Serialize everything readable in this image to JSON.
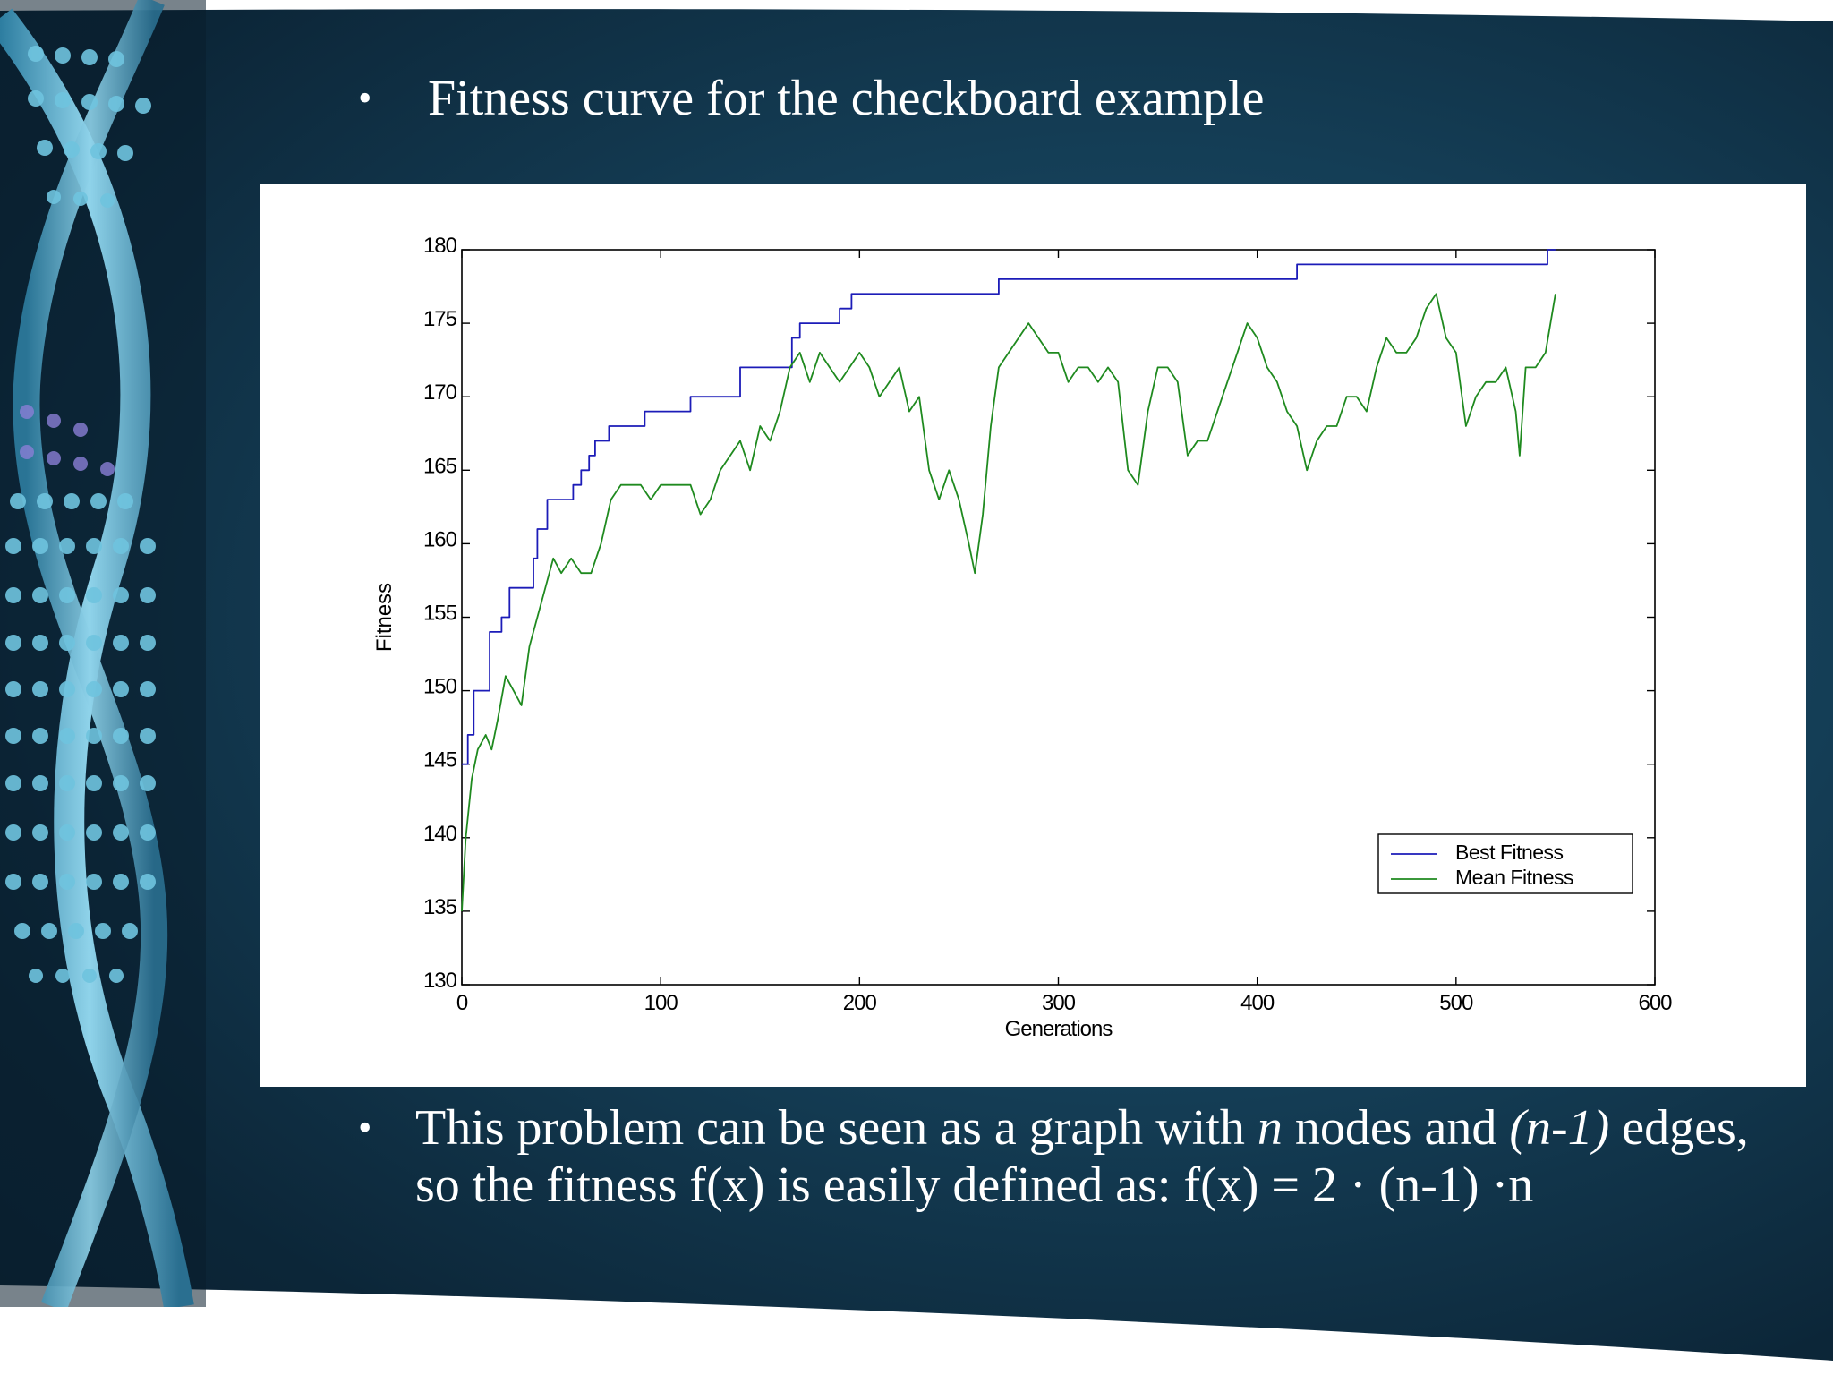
{
  "slide": {
    "bullet1": "Fitness curve for the checkboard example",
    "bullet2_line1_a": "This problem can be seen as a graph with ",
    "bullet2_line1_n": "n",
    "bullet2_line1_b": " nodes and ",
    "bullet2_line1_edges": "(n-1)",
    "bullet2_line1_c": " edges,",
    "bullet2_line2": "so the fitness f(x) is easily defined as: f(x) = 2 · (n-1) ·n",
    "bullet_symbol": "•"
  },
  "colors": {
    "best": "#1c1cb8",
    "mean": "#1f8a1f",
    "background": "#143d55"
  },
  "chart_data": {
    "type": "line",
    "title": "",
    "xlabel": "Generations",
    "ylabel": "Fitness",
    "xlim": [
      0,
      600
    ],
    "ylim": [
      130,
      180
    ],
    "xticks": [
      0,
      100,
      200,
      300,
      400,
      500,
      600
    ],
    "yticks": [
      130,
      135,
      140,
      145,
      150,
      155,
      160,
      165,
      170,
      175,
      180
    ],
    "grid": false,
    "legend": {
      "placement": "lower-right",
      "entries": [
        "Best Fitness",
        "Mean Fitness"
      ]
    },
    "series": [
      {
        "name": "Best Fitness",
        "color": "#1c1cb8",
        "step": true,
        "x": [
          0,
          3,
          6,
          14,
          16,
          20,
          24,
          28,
          36,
          38,
          40,
          43,
          56,
          60,
          64,
          67,
          74,
          85,
          92,
          115,
          125,
          140,
          166,
          170,
          190,
          196,
          206,
          270,
          305,
          420,
          425,
          540,
          546,
          550
        ],
        "y": [
          145,
          147,
          150,
          154,
          154,
          155,
          157,
          157,
          159,
          161,
          161,
          163,
          164,
          165,
          166,
          167,
          168,
          168,
          169,
          170,
          170,
          172,
          174,
          175,
          176,
          177,
          177,
          178,
          178,
          179,
          179,
          179,
          180,
          180
        ]
      },
      {
        "name": "Mean Fitness",
        "color": "#1f8a1f",
        "step": false,
        "x": [
          0,
          2,
          5,
          8,
          12,
          15,
          18,
          22,
          26,
          30,
          34,
          38,
          42,
          46,
          50,
          55,
          60,
          65,
          70,
          75,
          80,
          85,
          90,
          95,
          100,
          105,
          110,
          115,
          120,
          125,
          130,
          135,
          140,
          145,
          150,
          155,
          160,
          165,
          170,
          175,
          180,
          185,
          190,
          195,
          200,
          205,
          210,
          215,
          220,
          225,
          230,
          235,
          240,
          245,
          250,
          255,
          258,
          262,
          266,
          270,
          275,
          280,
          285,
          290,
          295,
          300,
          305,
          310,
          315,
          320,
          325,
          330,
          335,
          340,
          345,
          350,
          355,
          360,
          365,
          370,
          375,
          380,
          385,
          390,
          395,
          400,
          405,
          410,
          415,
          420,
          425,
          430,
          435,
          440,
          445,
          450,
          455,
          460,
          465,
          470,
          475,
          480,
          485,
          490,
          495,
          500,
          505,
          510,
          515,
          520,
          525,
          530,
          532,
          535,
          540,
          545,
          550
        ],
        "y": [
          135,
          140,
          144,
          146,
          147,
          146,
          148,
          151,
          150,
          149,
          153,
          155,
          157,
          159,
          158,
          159,
          158,
          158,
          160,
          163,
          164,
          164,
          164,
          163,
          164,
          164,
          164,
          164,
          162,
          163,
          165,
          166,
          167,
          165,
          168,
          167,
          169,
          172,
          173,
          171,
          173,
          172,
          171,
          172,
          173,
          172,
          170,
          171,
          172,
          169,
          170,
          165,
          163,
          165,
          163,
          160,
          158,
          162,
          168,
          172,
          173,
          174,
          175,
          174,
          173,
          173,
          171,
          172,
          172,
          171,
          172,
          171,
          165,
          164,
          169,
          172,
          172,
          171,
          166,
          167,
          167,
          169,
          171,
          173,
          175,
          174,
          172,
          171,
          169,
          168,
          165,
          167,
          168,
          168,
          170,
          170,
          169,
          172,
          174,
          173,
          173,
          174,
          176,
          177,
          174,
          173,
          168,
          170,
          171,
          171,
          172,
          169,
          166,
          172,
          172,
          173,
          177
        ]
      }
    ]
  }
}
